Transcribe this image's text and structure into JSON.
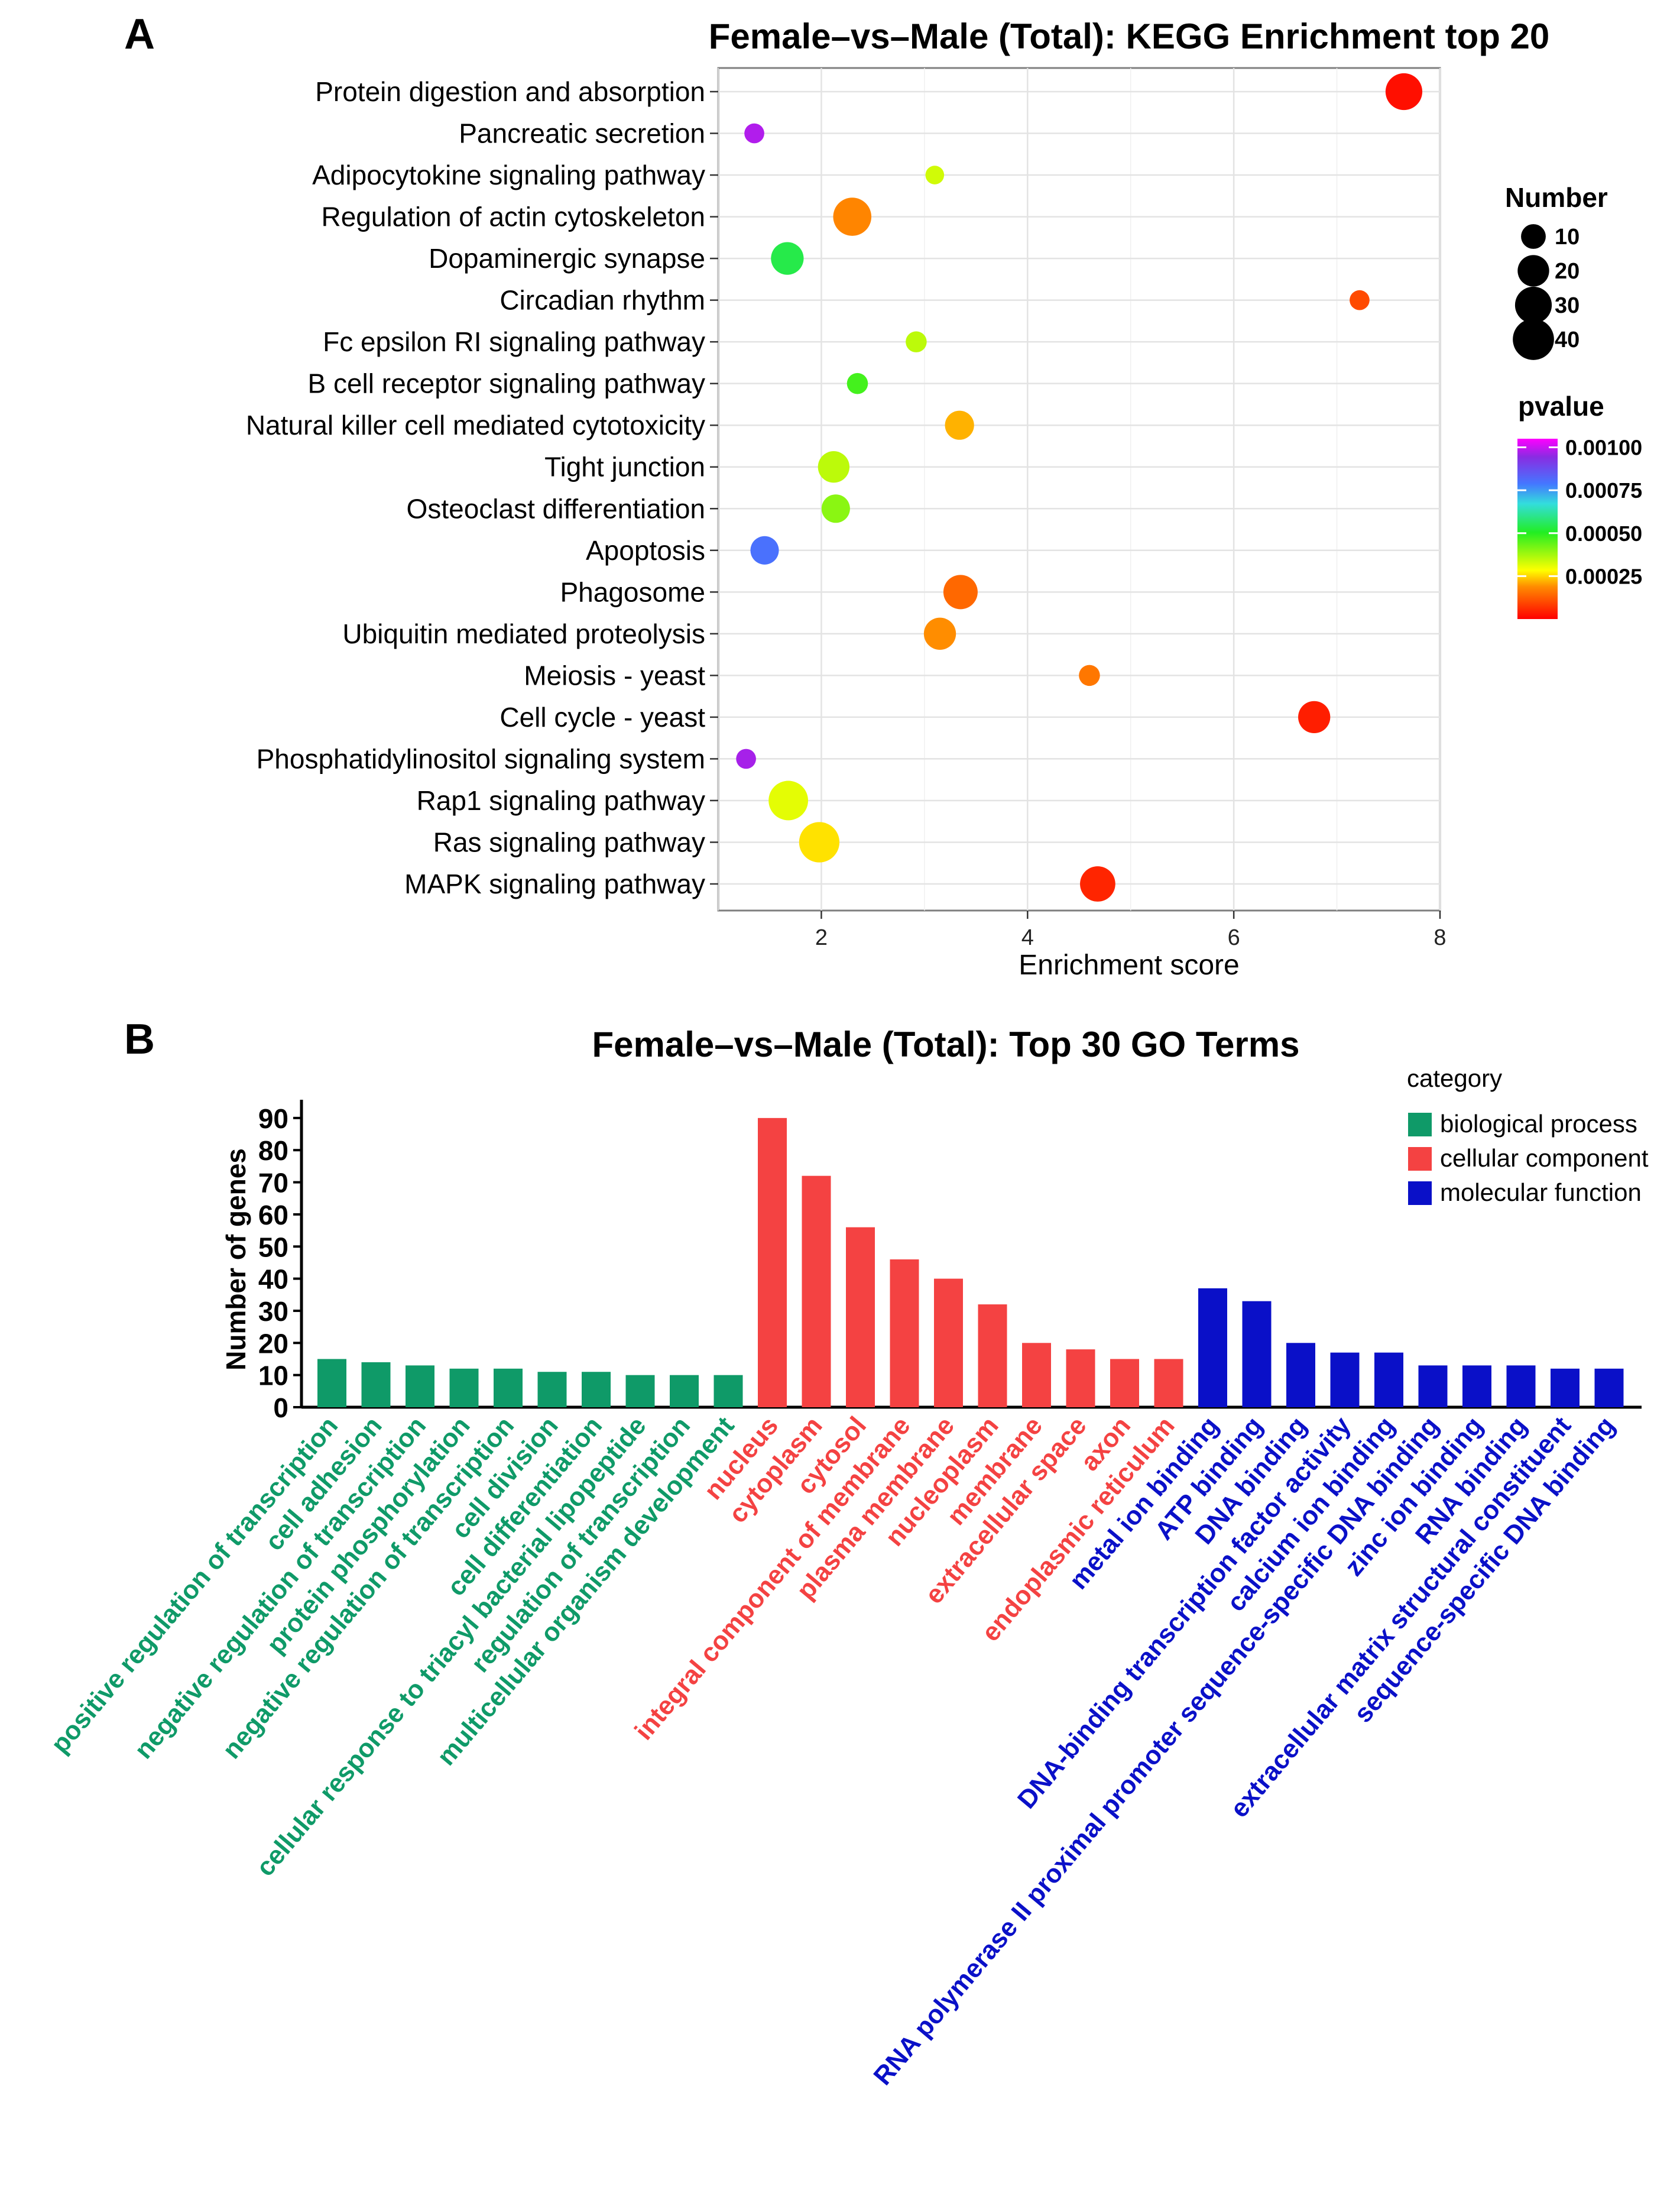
{
  "panels": {
    "a": {
      "letter": "A"
    },
    "b": {
      "letter": "B"
    }
  },
  "chart_data": [
    {
      "type": "scatter",
      "title": "Female–vs–Male (Total): KEGG Enrichment top 20",
      "xlabel": "Enrichment score",
      "ylabel": "",
      "xlim": [
        1.0,
        8.0
      ],
      "xticks": [
        2,
        4,
        6,
        8
      ],
      "grid": true,
      "legend_size": {
        "title": "Number",
        "values": [
          10,
          20,
          30,
          40
        ]
      },
      "legend_color": {
        "title": "pvalue",
        "range": [
          0.0,
          0.00105
        ],
        "ticks": [
          0.001,
          0.00075,
          0.0005,
          0.00025
        ],
        "tick_labels": [
          "0.00100",
          "0.00075",
          "0.00050",
          "0.00025"
        ]
      },
      "points": [
        {
          "term": "Protein digestion and absorption",
          "x": 7.65,
          "number": 30,
          "pvalue": 2e-05
        },
        {
          "term": "Pancreatic secretion",
          "x": 1.35,
          "number": 5,
          "pvalue": 0.00098
        },
        {
          "term": "Adipocytokine signaling pathway",
          "x": 3.1,
          "number": 4,
          "pvalue": 0.00033
        },
        {
          "term": "Regulation of actin cytoskeleton",
          "x": 2.3,
          "number": 33,
          "pvalue": 0.00018
        },
        {
          "term": "Dopaminergic synapse",
          "x": 1.67,
          "number": 22,
          "pvalue": 0.00054
        },
        {
          "term": "Circadian rhythm",
          "x": 7.22,
          "number": 5,
          "pvalue": 0.0001
        },
        {
          "term": "Fc epsilon RI signaling pathway",
          "x": 2.92,
          "number": 6,
          "pvalue": 0.00035
        },
        {
          "term": "B cell receptor signaling pathway",
          "x": 2.35,
          "number": 6,
          "pvalue": 0.00047
        },
        {
          "term": "Natural killer cell mediated cytotoxicity",
          "x": 3.34,
          "number": 16,
          "pvalue": 0.00022
        },
        {
          "term": "Tight junction",
          "x": 2.12,
          "number": 20,
          "pvalue": 0.00035
        },
        {
          "term": "Osteoclast differentiation",
          "x": 2.14,
          "number": 15,
          "pvalue": 0.0004
        },
        {
          "term": "Apoptosis",
          "x": 1.45,
          "number": 15,
          "pvalue": 0.0008
        },
        {
          "term": "Phagosome",
          "x": 3.35,
          "number": 25,
          "pvalue": 0.00014
        },
        {
          "term": "Ubiquitin mediated proteolysis",
          "x": 3.15,
          "number": 21,
          "pvalue": 0.00019
        },
        {
          "term": "Meiosis - yeast",
          "x": 4.6,
          "number": 6,
          "pvalue": 0.00016
        },
        {
          "term": "Cell cycle - yeast",
          "x": 6.78,
          "number": 21,
          "pvalue": 4e-05
        },
        {
          "term": "Phosphatidylinositol signaling system",
          "x": 1.27,
          "number": 5,
          "pvalue": 0.00097
        },
        {
          "term": "Rap1 signaling pathway",
          "x": 1.68,
          "number": 36,
          "pvalue": 0.00031
        },
        {
          "term": "Ras signaling pathway",
          "x": 1.98,
          "number": 38,
          "pvalue": 0.00026
        },
        {
          "term": "MAPK signaling pathway",
          "x": 4.68,
          "number": 27,
          "pvalue": 5e-05
        }
      ]
    },
    {
      "type": "bar",
      "title": "Female–vs–Male (Total): Top 30 GO Terms",
      "xlabel": "",
      "ylabel": "Number of genes",
      "ylim": [
        0,
        92
      ],
      "yticks": [
        0,
        10,
        20,
        30,
        40,
        50,
        60,
        70,
        80,
        90
      ],
      "legend_title": "category",
      "categories_legend": [
        {
          "name": "biological process",
          "color": "#0F9A68"
        },
        {
          "name": "cellular component",
          "color": "#F44242"
        },
        {
          "name": "molecular function",
          "color": "#0A10C8"
        }
      ],
      "bars": [
        {
          "label": "positive regulation of transcription",
          "value": 15,
          "category": 0
        },
        {
          "label": "cell adhesion",
          "value": 14,
          "category": 0
        },
        {
          "label": "negative regulation of transcription",
          "value": 13,
          "category": 0
        },
        {
          "label": "protein phosphorylation",
          "value": 12,
          "category": 0
        },
        {
          "label": "negative regulation of transcription",
          "value": 12,
          "category": 0
        },
        {
          "label": "cell division",
          "value": 11,
          "category": 0
        },
        {
          "label": "cell differentiation",
          "value": 11,
          "category": 0
        },
        {
          "label": "cellular response to triacyl bacterial lipopeptide",
          "value": 10,
          "category": 0
        },
        {
          "label": "regulation of transcription",
          "value": 10,
          "category": 0
        },
        {
          "label": "multicellular organism development",
          "value": 10,
          "category": 0
        },
        {
          "label": "nucleus",
          "value": 90,
          "category": 1
        },
        {
          "label": "cytoplasm",
          "value": 72,
          "category": 1
        },
        {
          "label": "cytosol",
          "value": 56,
          "category": 1
        },
        {
          "label": "integral component of membrane",
          "value": 46,
          "category": 1
        },
        {
          "label": "plasma membrane",
          "value": 40,
          "category": 1
        },
        {
          "label": "nucleoplasm",
          "value": 32,
          "category": 1
        },
        {
          "label": "membrane",
          "value": 20,
          "category": 1
        },
        {
          "label": "extracellular space",
          "value": 18,
          "category": 1
        },
        {
          "label": "axon",
          "value": 15,
          "category": 1
        },
        {
          "label": "endoplasmic reticulum",
          "value": 15,
          "category": 1
        },
        {
          "label": "metal ion binding",
          "value": 37,
          "category": 2
        },
        {
          "label": "ATP binding",
          "value": 33,
          "category": 2
        },
        {
          "label": "DNA binding",
          "value": 20,
          "category": 2
        },
        {
          "label": "DNA-binding transcription factor activity",
          "value": 17,
          "category": 2
        },
        {
          "label": "calcium ion binding",
          "value": 17,
          "category": 2
        },
        {
          "label": "RNA polymerase II proximal promoter sequence-specific DNA binding",
          "value": 13,
          "category": 2
        },
        {
          "label": "zinc ion binding",
          "value": 13,
          "category": 2
        },
        {
          "label": "RNA binding",
          "value": 13,
          "category": 2
        },
        {
          "label": "extracellular matrix structural constituent",
          "value": 12,
          "category": 2
        },
        {
          "label": "sequence-specific DNA binding",
          "value": 12,
          "category": 2
        }
      ]
    }
  ]
}
